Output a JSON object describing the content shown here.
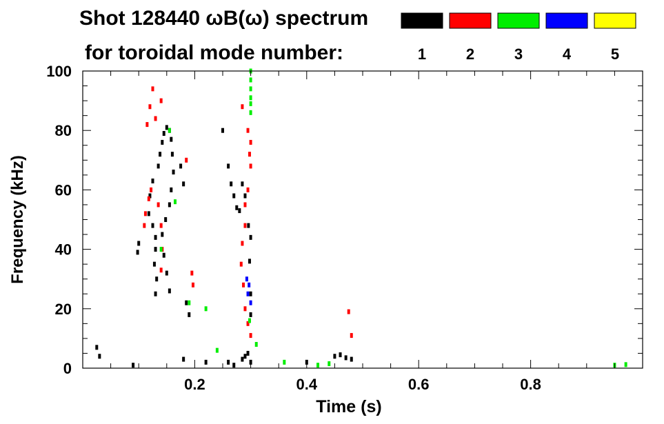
{
  "chart_data": {
    "type": "heatmap",
    "title": "Shot 128440 ωB(ω) spectrum",
    "subtitle": "for toroidal mode number:",
    "xlabel": "Time (s)",
    "ylabel": "Frequency (kHz)",
    "xlim": [
      0.0,
      1.0
    ],
    "ylim": [
      0,
      100
    ],
    "x_ticks": [
      0.2,
      0.4,
      0.6,
      0.8
    ],
    "x_tick_labels": [
      "0.2",
      "0.4",
      "0.6",
      "0.8"
    ],
    "y_ticks": [
      0,
      20,
      40,
      60,
      80,
      100
    ],
    "y_tick_labels": [
      "0",
      "20",
      "40",
      "60",
      "80",
      "100"
    ],
    "grid": false,
    "legend": {
      "placement": "top-right",
      "entries": [
        {
          "label": "1",
          "color": "#000000"
        },
        {
          "label": "2",
          "color": "#ff0000"
        },
        {
          "label": "3",
          "color": "#00ee00"
        },
        {
          "label": "4",
          "color": "#0000ff"
        },
        {
          "label": "5",
          "color": "#ffff00"
        }
      ]
    },
    "series": [
      {
        "mode": 1,
        "color": "#000000",
        "points": [
          [
            0.125,
            63
          ],
          [
            0.12,
            58
          ],
          [
            0.118,
            52
          ],
          [
            0.125,
            48
          ],
          [
            0.13,
            44
          ],
          [
            0.13,
            40
          ],
          [
            0.128,
            35
          ],
          [
            0.132,
            30
          ],
          [
            0.13,
            25
          ],
          [
            0.135,
            68
          ],
          [
            0.138,
            72
          ],
          [
            0.142,
            76
          ],
          [
            0.145,
            79
          ],
          [
            0.15,
            81
          ],
          [
            0.155,
            80
          ],
          [
            0.158,
            77
          ],
          [
            0.16,
            72
          ],
          [
            0.162,
            66
          ],
          [
            0.158,
            60
          ],
          [
            0.155,
            55
          ],
          [
            0.148,
            50
          ],
          [
            0.142,
            45
          ],
          [
            0.145,
            38
          ],
          [
            0.15,
            32
          ],
          [
            0.155,
            26
          ],
          [
            0.1,
            42
          ],
          [
            0.098,
            39
          ],
          [
            0.175,
            68
          ],
          [
            0.18,
            62
          ],
          [
            0.185,
            22
          ],
          [
            0.19,
            18
          ],
          [
            0.25,
            80
          ],
          [
            0.26,
            68
          ],
          [
            0.265,
            62
          ],
          [
            0.27,
            58
          ],
          [
            0.275,
            54
          ],
          [
            0.28,
            53
          ],
          [
            0.285,
            62
          ],
          [
            0.29,
            58
          ],
          [
            0.296,
            48
          ],
          [
            0.3,
            44
          ],
          [
            0.298,
            36
          ],
          [
            0.3,
            25
          ],
          [
            0.3,
            18
          ],
          [
            0.295,
            5
          ],
          [
            0.29,
            4
          ],
          [
            0.285,
            3
          ],
          [
            0.3,
            2
          ],
          [
            0.025,
            7
          ],
          [
            0.03,
            4
          ],
          [
            0.09,
            1
          ],
          [
            0.18,
            3
          ],
          [
            0.22,
            2
          ],
          [
            0.26,
            2
          ],
          [
            0.27,
            1
          ],
          [
            0.45,
            4
          ],
          [
            0.46,
            4.5
          ],
          [
            0.47,
            3.5
          ],
          [
            0.48,
            3
          ],
          [
            0.4,
            2
          ]
        ]
      },
      {
        "mode": 2,
        "color": "#ff0000",
        "points": [
          [
            0.118,
            57
          ],
          [
            0.112,
            52
          ],
          [
            0.11,
            48
          ],
          [
            0.122,
            60
          ],
          [
            0.135,
            55
          ],
          [
            0.14,
            48
          ],
          [
            0.142,
            40
          ],
          [
            0.14,
            33
          ],
          [
            0.125,
            94
          ],
          [
            0.12,
            88
          ],
          [
            0.13,
            84
          ],
          [
            0.115,
            82
          ],
          [
            0.14,
            90
          ],
          [
            0.185,
            70
          ],
          [
            0.285,
            88
          ],
          [
            0.295,
            80
          ],
          [
            0.3,
            76
          ],
          [
            0.298,
            72
          ],
          [
            0.3,
            68
          ],
          [
            0.295,
            60
          ],
          [
            0.29,
            55
          ],
          [
            0.29,
            48
          ],
          [
            0.285,
            42
          ],
          [
            0.283,
            35
          ],
          [
            0.287,
            28
          ],
          [
            0.29,
            20
          ],
          [
            0.295,
            15
          ],
          [
            0.3,
            11
          ],
          [
            0.195,
            32
          ],
          [
            0.197,
            28
          ],
          [
            0.475,
            19
          ],
          [
            0.48,
            11
          ]
        ]
      },
      {
        "mode": 3,
        "color": "#00ee00",
        "points": [
          [
            0.3,
            100
          ],
          [
            0.3,
            97
          ],
          [
            0.3,
            94
          ],
          [
            0.3,
            91
          ],
          [
            0.3,
            89
          ],
          [
            0.3,
            86
          ],
          [
            0.155,
            80
          ],
          [
            0.165,
            56
          ],
          [
            0.22,
            20
          ],
          [
            0.19,
            22
          ],
          [
            0.14,
            40
          ],
          [
            0.24,
            6
          ],
          [
            0.298,
            16
          ],
          [
            0.31,
            8
          ],
          [
            0.36,
            2
          ],
          [
            0.42,
            1
          ],
          [
            0.44,
            1.5
          ],
          [
            0.95,
            1
          ],
          [
            0.97,
            1.2
          ]
        ]
      },
      {
        "mode": 4,
        "color": "#0000ff",
        "points": [
          [
            0.295,
            25
          ],
          [
            0.297,
            28
          ],
          [
            0.3,
            22
          ],
          [
            0.293,
            30
          ]
        ]
      }
    ]
  }
}
